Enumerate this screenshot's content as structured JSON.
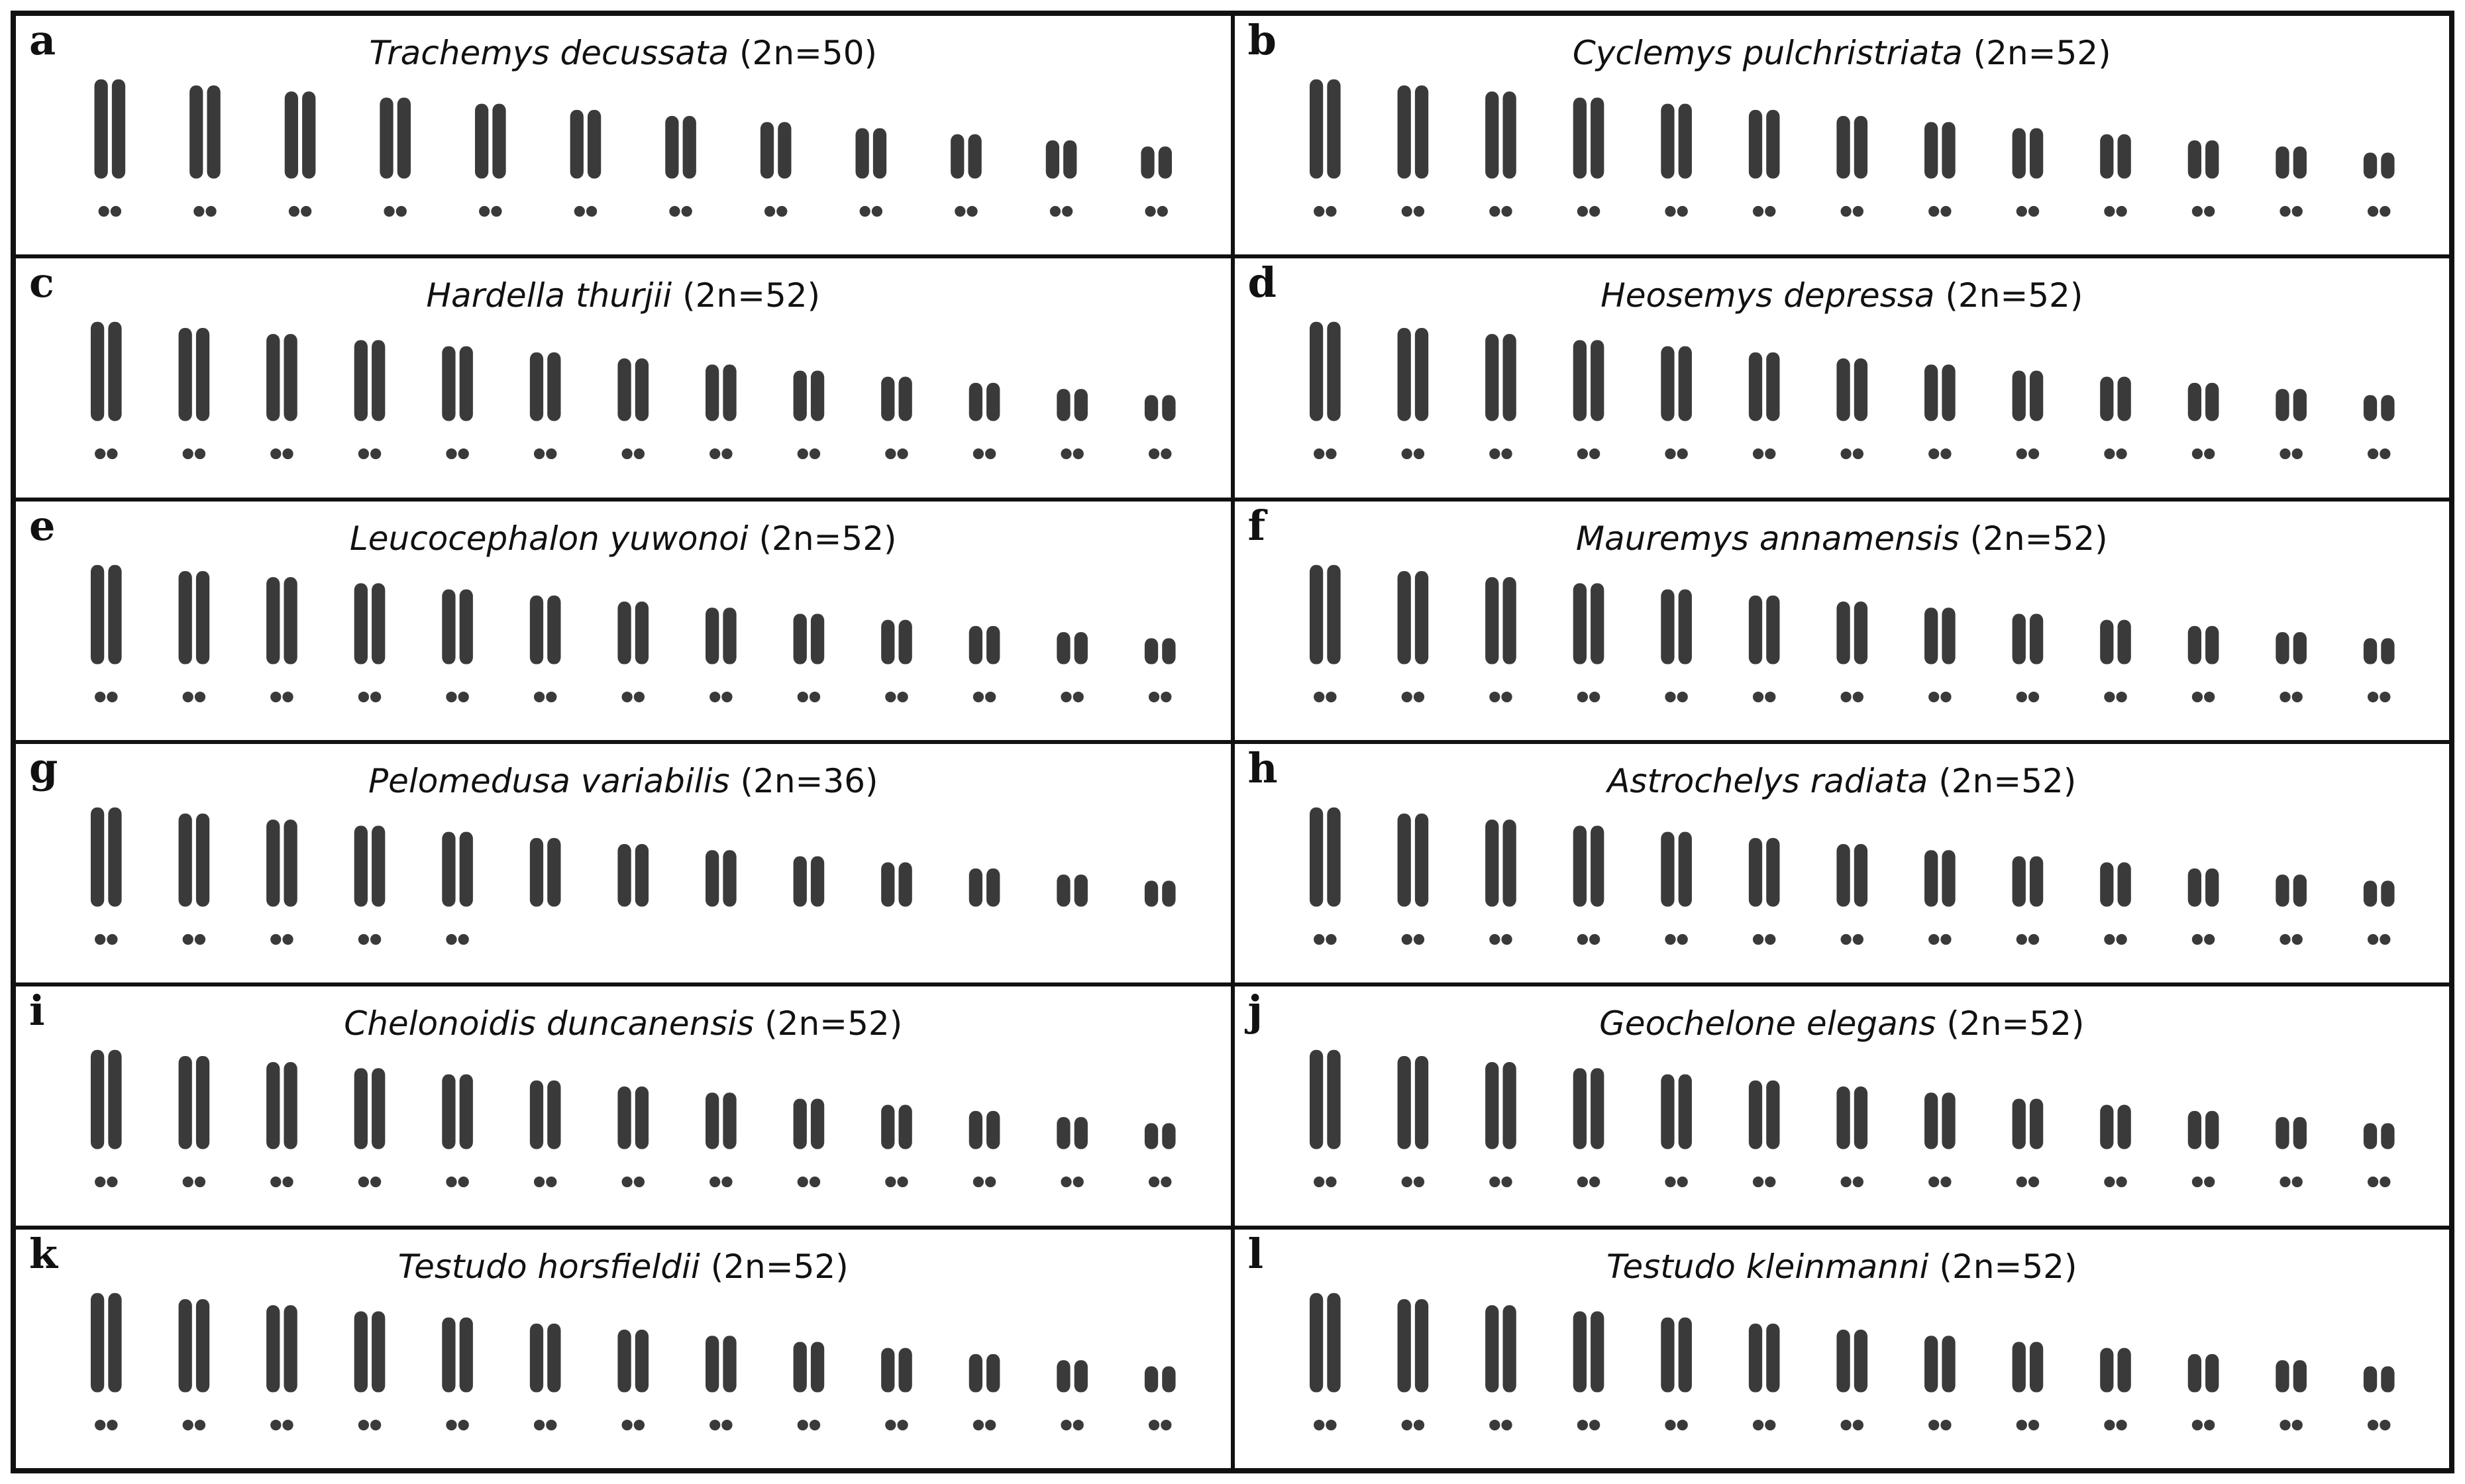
{
  "figure": {
    "panels": [
      {
        "letter": "a",
        "species": "Trachemys decussata",
        "count": "(2n=50)"
      },
      {
        "letter": "b",
        "species": "Cyclemys pulchristriata",
        "count": "(2n=52)"
      },
      {
        "letter": "c",
        "species": "Hardella thurjii",
        "count": "(2n=52)"
      },
      {
        "letter": "d",
        "species": "Heosemys depressa",
        "count": "(2n=52)"
      },
      {
        "letter": "e",
        "species": "Leucocephalon yuwonoi",
        "count": "(2n=52)"
      },
      {
        "letter": "f",
        "species": "Mauremys annamensis",
        "count": "(2n=52)"
      },
      {
        "letter": "g",
        "species": "Pelomedusa variabilis",
        "count": "(2n=36)"
      },
      {
        "letter": "h",
        "species": "Astrochelys radiata",
        "count": "(2n=52)"
      },
      {
        "letter": "i",
        "species": "Chelonoidis duncanensis",
        "count": "(2n=52)"
      },
      {
        "letter": "j",
        "species": "Geochelone elegans",
        "count": "(2n=52)"
      },
      {
        "letter": "k",
        "species": "Testudo horsfieldii",
        "count": "(2n=52)"
      },
      {
        "letter": "l",
        "species": "Testudo kleinmanni",
        "count": "(2n=52)"
      }
    ],
    "colors": {
      "chromosome": "#3a3a3a",
      "border": "#111111",
      "background": "#ffffff"
    }
  }
}
